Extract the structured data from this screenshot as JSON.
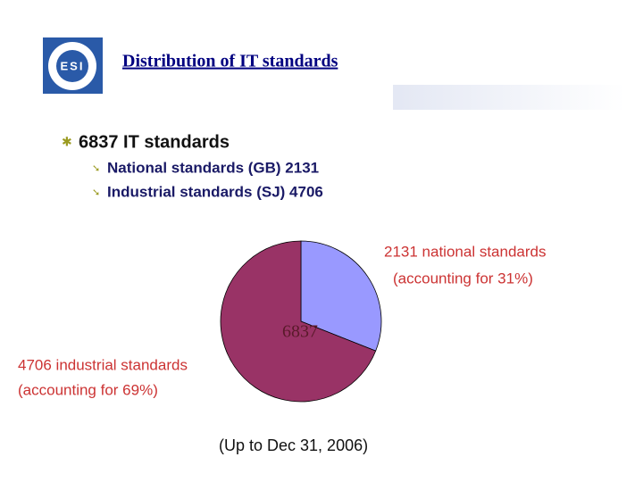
{
  "header": {
    "title": "Distribution of IT standards",
    "logo": "ESI"
  },
  "bullets": {
    "text": "6837 IT standards",
    "sub": [
      "National standards (GB) 2131",
      "Industrial standards (SJ) 4706"
    ]
  },
  "chart_data": {
    "type": "pie",
    "center_label": "6837",
    "categories": [
      "national standards",
      "industrial standards"
    ],
    "values": [
      31,
      69
    ],
    "value_labels": [
      [
        "2131 national standards",
        "(accounting for 31%)"
      ],
      [
        "4706 industrial standards",
        "(accounting for 69%)"
      ]
    ],
    "colors": [
      "#9999ff",
      "#993366"
    ],
    "note": "(Up to Dec 31, 2006)"
  }
}
